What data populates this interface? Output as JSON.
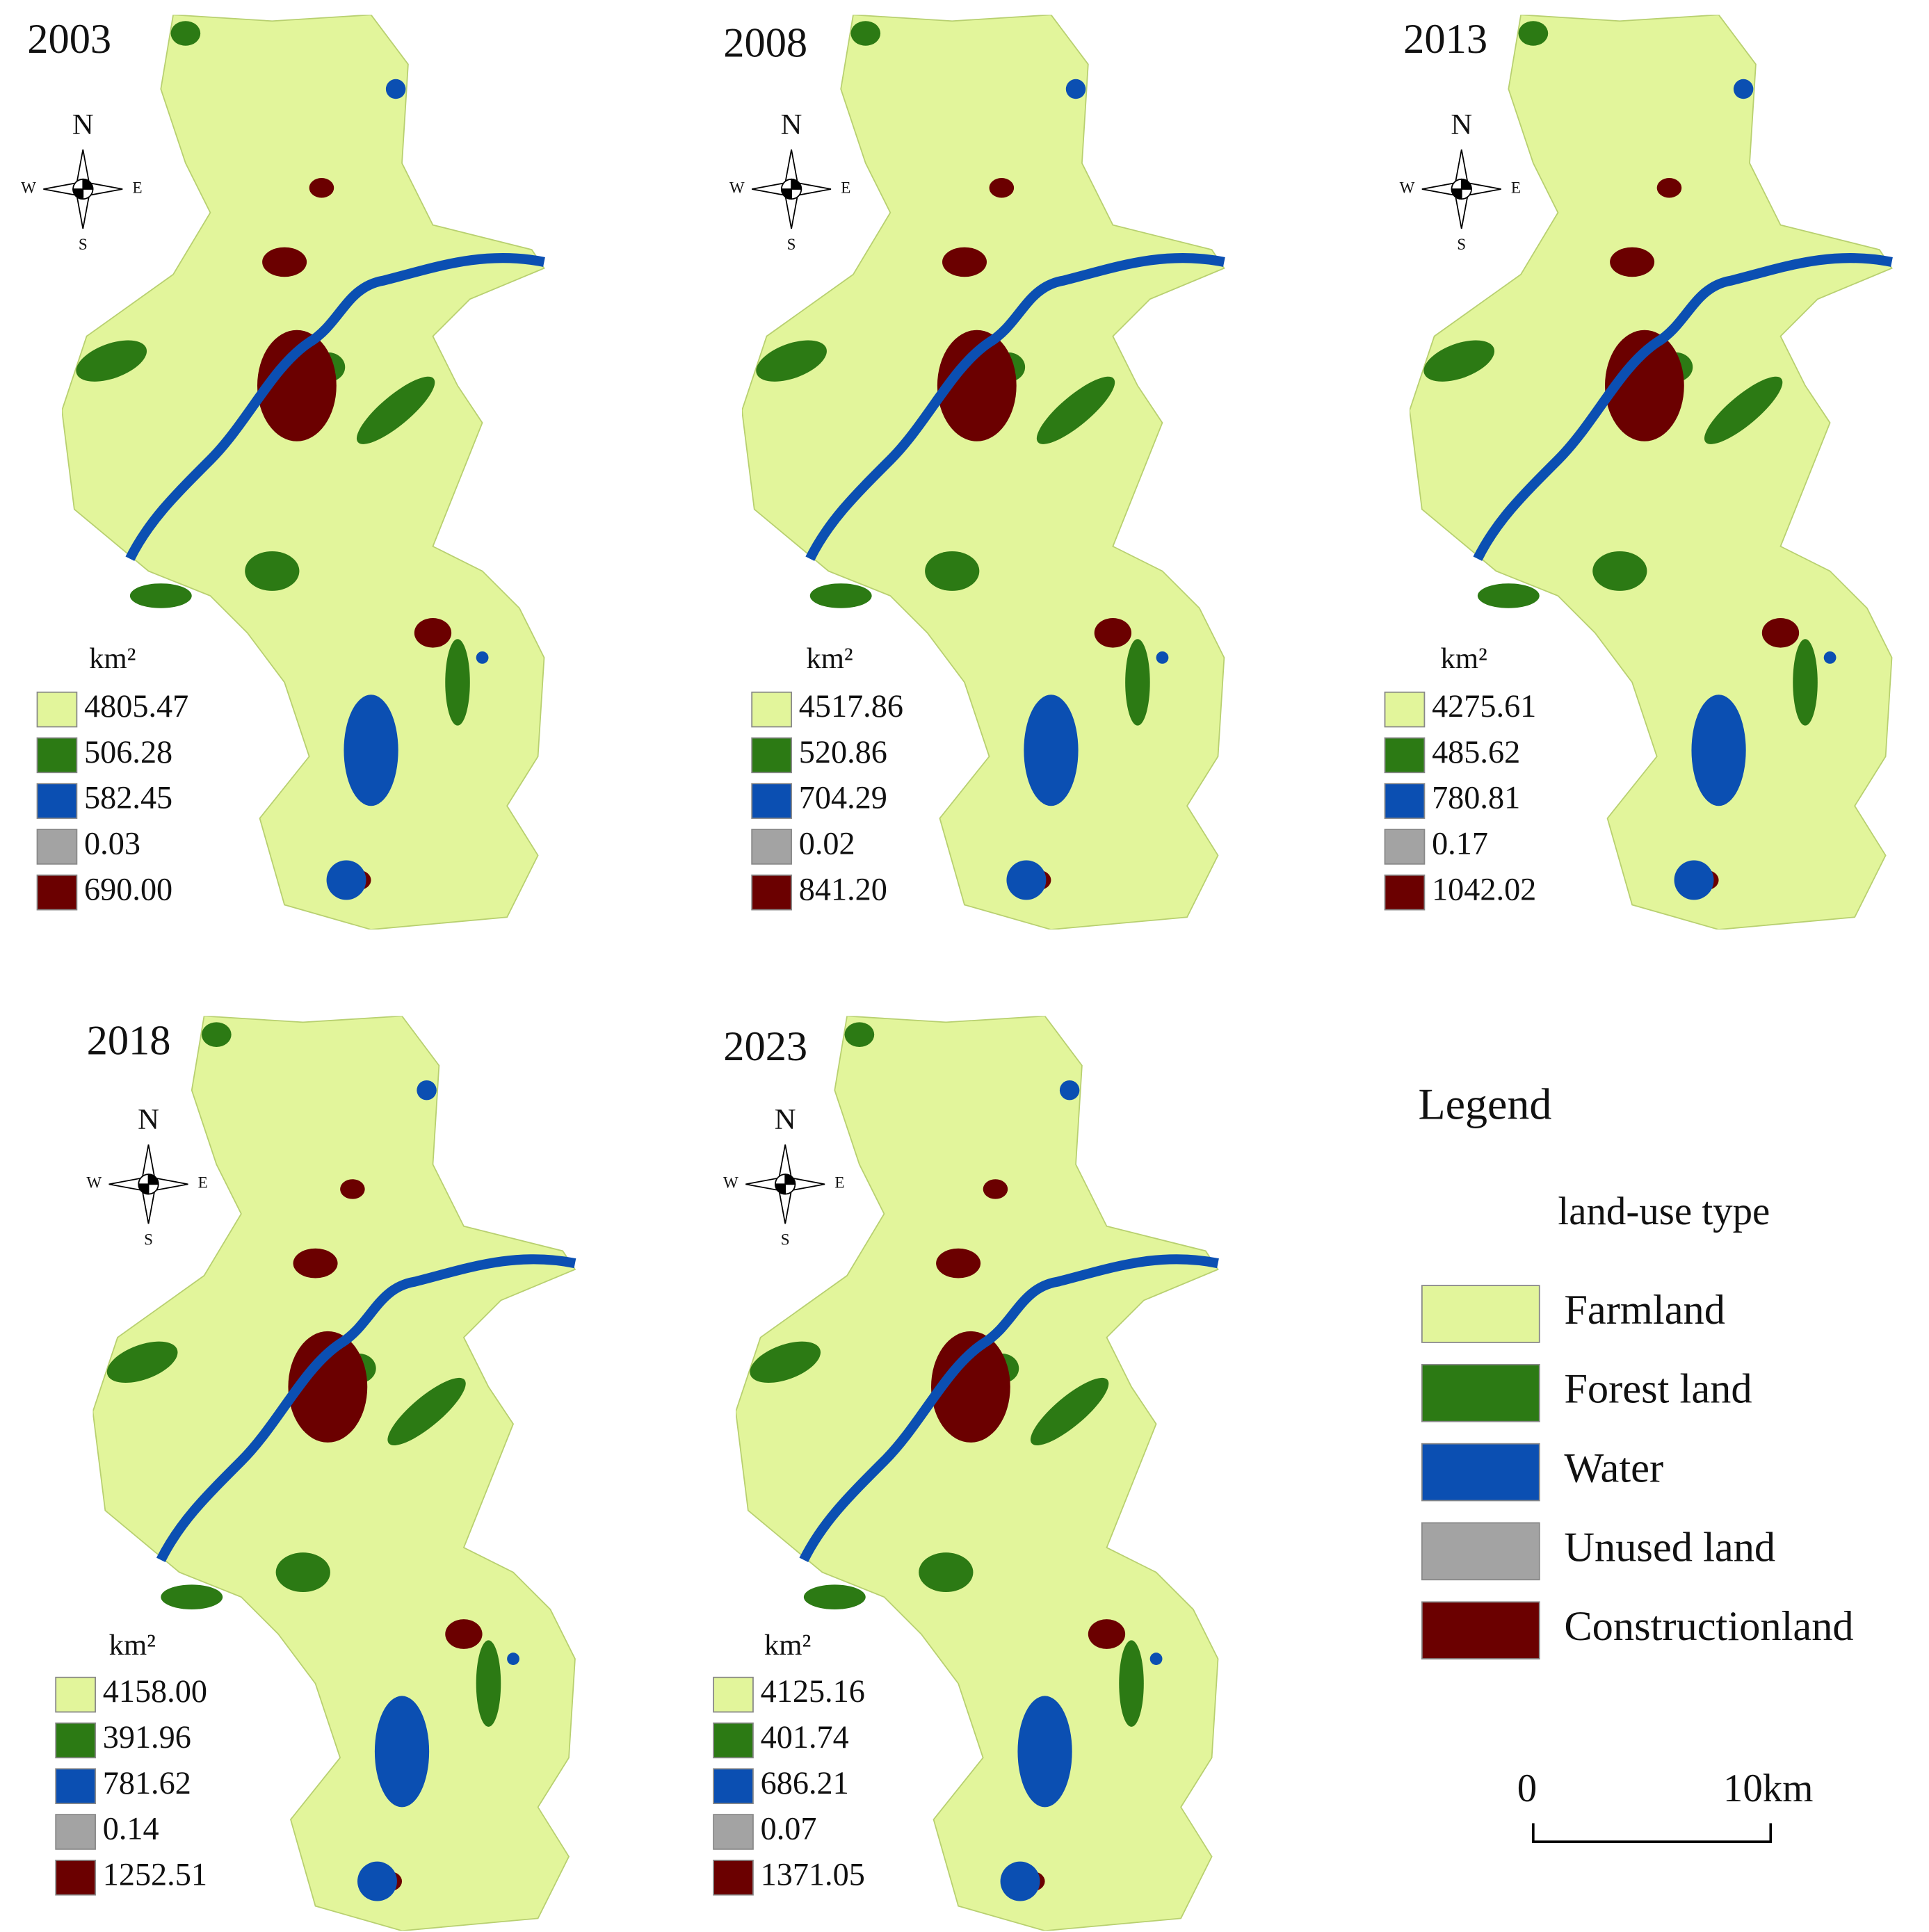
{
  "panels": [
    {
      "year": "2003",
      "unit": "km²",
      "values": [
        "4805.47",
        "506.28",
        "582.45",
        "0.03",
        "690.00"
      ]
    },
    {
      "year": "2008",
      "unit": "km²",
      "values": [
        "4517.86",
        "520.86",
        "704.29",
        "0.02",
        "841.20"
      ]
    },
    {
      "year": "2013",
      "unit": "km²",
      "values": [
        "4275.61",
        "485.62",
        "780.81",
        "0.17",
        "1042.02"
      ]
    },
    {
      "year": "2018",
      "unit": "km²",
      "values": [
        "4158.00",
        "391.96",
        "781.62",
        "0.14",
        "1252.51"
      ]
    },
    {
      "year": "2023",
      "unit": "km²",
      "values": [
        "4125.16",
        "401.74",
        "686.21",
        "0.07",
        "1371.05"
      ]
    }
  ],
  "compass": {
    "n": "N",
    "s": "S",
    "w": "W",
    "e": "E"
  },
  "legend": {
    "title": "Legend",
    "subtitle": "land-use type",
    "items": [
      {
        "label": "Farmland",
        "color": "#e2f59b"
      },
      {
        "label": "Forest land",
        "color": "#2c7a14"
      },
      {
        "label": "Water",
        "color": "#0b4fb2"
      },
      {
        "label": "Unused land",
        "color": "#a3a3a3"
      },
      {
        "label": "Constructionland",
        "color": "#6b0000"
      }
    ]
  },
  "scale_bar": {
    "start": "0",
    "end": "10km"
  }
}
